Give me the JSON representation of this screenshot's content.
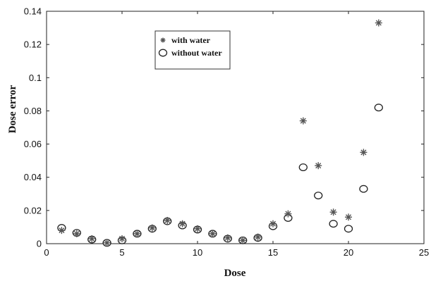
{
  "chart_data": {
    "type": "scatter",
    "xlabel": "Dose",
    "ylabel": "Dose error",
    "xlim": [
      0,
      25
    ],
    "ylim": [
      0,
      0.14
    ],
    "xticks": [
      "0",
      "5",
      "10",
      "15",
      "20",
      "25"
    ],
    "yticks": [
      "0",
      "0.02",
      "0.04",
      "0.06",
      "0.08",
      "0.1",
      "0.12",
      "0.14"
    ],
    "grid": false,
    "legend_position": "top-left",
    "series": [
      {
        "name": "with water",
        "marker": "star",
        "color": "#555555",
        "points": [
          [
            1,
            0.008
          ],
          [
            2,
            0.006
          ],
          [
            3,
            0.003
          ],
          [
            4,
            0.0005
          ],
          [
            5,
            0.003
          ],
          [
            6,
            0.006
          ],
          [
            7,
            0.0095
          ],
          [
            8,
            0.014
          ],
          [
            9,
            0.012
          ],
          [
            10,
            0.009
          ],
          [
            11,
            0.006
          ],
          [
            12,
            0.0035
          ],
          [
            13,
            0.002
          ],
          [
            14,
            0.004
          ],
          [
            15,
            0.012
          ],
          [
            16,
            0.018
          ],
          [
            17,
            0.074
          ],
          [
            18,
            0.047
          ],
          [
            19,
            0.019
          ],
          [
            20,
            0.016
          ],
          [
            21,
            0.055
          ],
          [
            22,
            0.133
          ]
        ]
      },
      {
        "name": "without water",
        "marker": "circle",
        "color": "#222222",
        "points": [
          [
            1,
            0.0095
          ],
          [
            2,
            0.0065
          ],
          [
            3,
            0.0025
          ],
          [
            4,
            0.0005
          ],
          [
            5,
            0.002
          ],
          [
            6,
            0.006
          ],
          [
            7,
            0.009
          ],
          [
            8,
            0.0135
          ],
          [
            9,
            0.011
          ],
          [
            10,
            0.0085
          ],
          [
            11,
            0.006
          ],
          [
            12,
            0.003
          ],
          [
            13,
            0.002
          ],
          [
            14,
            0.0035
          ],
          [
            15,
            0.0105
          ],
          [
            16,
            0.0155
          ],
          [
            17,
            0.046
          ],
          [
            18,
            0.029
          ],
          [
            19,
            0.012
          ],
          [
            20,
            0.009
          ],
          [
            21,
            0.033
          ],
          [
            22,
            0.082
          ]
        ]
      }
    ]
  }
}
